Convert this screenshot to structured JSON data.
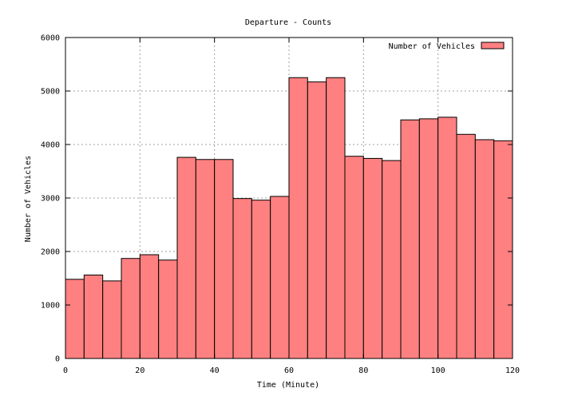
{
  "chart_data": {
    "type": "bar",
    "title": "Departure - Counts",
    "xlabel": "Time (Minute)",
    "ylabel": "Number of Vehicles",
    "xlim": [
      0,
      120
    ],
    "ylim": [
      0,
      6000
    ],
    "x_ticks": [
      0,
      20,
      40,
      60,
      80,
      100,
      120
    ],
    "y_ticks": [
      0,
      1000,
      2000,
      3000,
      4000,
      5000,
      6000
    ],
    "grid": true,
    "legend_position": "top-right",
    "bin_width": 5,
    "series": [
      {
        "name": "Number of Vehicles",
        "color": "#ff8080",
        "x": [
          0,
          5,
          10,
          15,
          20,
          25,
          30,
          35,
          40,
          45,
          50,
          55,
          60,
          65,
          70,
          75,
          80,
          85,
          90,
          95,
          100,
          105,
          110,
          115
        ],
        "values": [
          1480,
          1560,
          1450,
          1870,
          1940,
          1840,
          3760,
          3720,
          3720,
          2990,
          2960,
          3030,
          5250,
          5170,
          5250,
          3780,
          3740,
          3700,
          4460,
          4480,
          4510,
          4190,
          4090,
          4070
        ]
      }
    ]
  }
}
